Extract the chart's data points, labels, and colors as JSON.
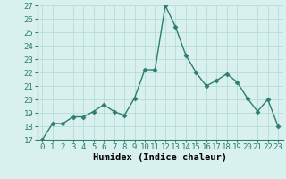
{
  "x": [
    0,
    1,
    2,
    3,
    4,
    5,
    6,
    7,
    8,
    9,
    10,
    11,
    12,
    13,
    14,
    15,
    16,
    17,
    18,
    19,
    20,
    21,
    22,
    23
  ],
  "y": [
    17.0,
    18.2,
    18.2,
    18.7,
    18.7,
    19.1,
    19.6,
    19.1,
    18.8,
    20.1,
    22.2,
    22.2,
    27.0,
    25.4,
    23.3,
    22.0,
    21.0,
    21.4,
    21.9,
    21.3,
    20.1,
    19.1,
    20.0,
    18.0
  ],
  "line_color": "#2e7d6e",
  "marker": "D",
  "marker_size": 2.5,
  "bg_color": "#d8f0ee",
  "grid_color": "#b8dcd8",
  "xlabel": "Humidex (Indice chaleur)",
  "ylim": [
    17,
    27
  ],
  "xlim_min": -0.5,
  "xlim_max": 23.5,
  "yticks": [
    17,
    18,
    19,
    20,
    21,
    22,
    23,
    24,
    25,
    26,
    27
  ],
  "xticks": [
    0,
    1,
    2,
    3,
    4,
    5,
    6,
    7,
    8,
    9,
    10,
    11,
    12,
    13,
    14,
    15,
    16,
    17,
    18,
    19,
    20,
    21,
    22,
    23
  ],
  "tick_label_fontsize": 6.5,
  "xlabel_fontsize": 7.5,
  "line_width": 1.0,
  "spine_color": "#2e7d6e"
}
